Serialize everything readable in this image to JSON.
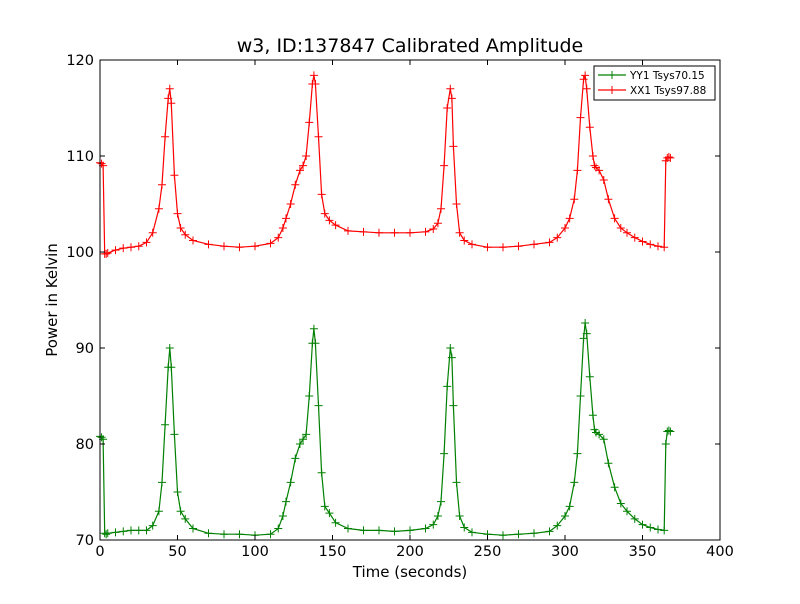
{
  "chart_data": {
    "type": "line",
    "title": "w3, ID:137847 Calibrated Amplitude",
    "xlabel": "Time (seconds)",
    "ylabel": "Power in Kelvin",
    "xlim": [
      0,
      400
    ],
    "ylim": [
      70,
      120
    ],
    "xticks": [
      0,
      50,
      100,
      150,
      200,
      250,
      300,
      350,
      400
    ],
    "yticks": [
      70,
      80,
      90,
      100,
      110,
      120
    ],
    "grid": false,
    "legend_position": "top-right",
    "marker": "+",
    "series": [
      {
        "name": "YY1 Tsys70.15",
        "color": "#008000",
        "x": [
          0,
          1,
          2,
          3,
          4,
          5,
          10,
          15,
          20,
          25,
          30,
          34,
          38,
          40,
          42,
          44,
          45,
          46,
          48,
          50,
          52,
          55,
          60,
          70,
          80,
          90,
          100,
          110,
          115,
          118,
          120,
          123,
          126,
          129,
          131,
          133,
          135,
          137,
          138,
          139,
          141,
          143,
          145,
          148,
          152,
          160,
          170,
          180,
          190,
          200,
          210,
          215,
          218,
          220,
          222,
          224,
          226,
          227,
          228,
          230,
          232,
          235,
          240,
          250,
          260,
          270,
          280,
          290,
          295,
          300,
          303,
          306,
          308,
          310,
          312,
          313,
          314,
          316,
          318,
          319,
          320,
          322,
          325,
          328,
          332,
          336,
          340,
          345,
          350,
          355,
          360,
          364,
          365,
          366,
          367,
          368
        ],
        "y": [
          80.8,
          80.7,
          80.5,
          70.7,
          70.6,
          70.7,
          70.8,
          70.9,
          71.0,
          71.0,
          71.0,
          71.5,
          73.0,
          76.0,
          82.0,
          88.0,
          90.0,
          88.0,
          81.0,
          75.0,
          73.0,
          72.2,
          71.2,
          70.7,
          70.6,
          70.6,
          70.5,
          70.6,
          71.2,
          72.5,
          74.0,
          76.0,
          78.5,
          80.0,
          80.5,
          81.0,
          85.0,
          90.5,
          92.0,
          90.5,
          84.0,
          77.0,
          73.5,
          72.8,
          71.8,
          71.2,
          71.0,
          71.0,
          70.9,
          71.0,
          71.2,
          71.6,
          72.5,
          74.0,
          79.0,
          86.0,
          90.0,
          89.0,
          84.0,
          76.0,
          72.5,
          71.3,
          70.8,
          70.6,
          70.5,
          70.6,
          70.7,
          70.9,
          71.5,
          72.5,
          73.5,
          76.0,
          79.0,
          85.0,
          91.0,
          92.6,
          91.5,
          87.0,
          83.0,
          81.5,
          81.2,
          81.0,
          80.5,
          78.0,
          75.5,
          73.8,
          73.0,
          72.2,
          71.6,
          71.3,
          71.1,
          71.0,
          80.0,
          81.3,
          81.4,
          81.3
        ]
      },
      {
        "name": "XX1 Tsys97.88",
        "color": "#ff0000",
        "x": [
          0,
          1,
          2,
          3,
          4,
          5,
          10,
          15,
          20,
          25,
          30,
          34,
          38,
          40,
          42,
          44,
          45,
          46,
          48,
          50,
          52,
          55,
          60,
          70,
          80,
          90,
          100,
          110,
          115,
          118,
          120,
          123,
          126,
          129,
          131,
          133,
          135,
          137,
          138,
          139,
          141,
          143,
          145,
          148,
          152,
          160,
          170,
          180,
          190,
          200,
          210,
          215,
          218,
          220,
          222,
          224,
          226,
          227,
          228,
          230,
          232,
          235,
          240,
          250,
          260,
          270,
          280,
          290,
          295,
          300,
          303,
          306,
          308,
          310,
          312,
          313,
          314,
          316,
          318,
          319,
          320,
          322,
          325,
          328,
          332,
          336,
          340,
          345,
          350,
          355,
          360,
          364,
          365,
          366,
          367,
          368
        ],
        "y": [
          109.3,
          109.2,
          109.0,
          99.8,
          99.8,
          99.9,
          100.2,
          100.4,
          100.5,
          100.6,
          101.0,
          102.0,
          104.5,
          107.0,
          112.0,
          116.0,
          117.0,
          115.5,
          108.0,
          104.0,
          102.5,
          101.8,
          101.2,
          100.8,
          100.6,
          100.5,
          100.6,
          100.9,
          101.5,
          102.5,
          103.5,
          105.0,
          107.0,
          108.5,
          109.0,
          110.0,
          113.5,
          117.5,
          118.4,
          117.5,
          112.0,
          106.0,
          104.0,
          103.3,
          102.8,
          102.2,
          102.1,
          102.0,
          102.0,
          102.0,
          102.1,
          102.4,
          103.0,
          104.5,
          109.0,
          115.0,
          117.0,
          116.0,
          111.0,
          105.0,
          102.0,
          101.2,
          100.8,
          100.5,
          100.5,
          100.6,
          100.8,
          101.0,
          101.5,
          102.5,
          103.5,
          105.5,
          108.5,
          114.0,
          118.0,
          118.4,
          117.0,
          113.0,
          110.0,
          109.0,
          108.8,
          108.5,
          107.5,
          105.5,
          103.5,
          102.5,
          102.0,
          101.5,
          101.1,
          100.8,
          100.6,
          100.5,
          109.5,
          109.8,
          109.9,
          109.8
        ]
      }
    ]
  }
}
